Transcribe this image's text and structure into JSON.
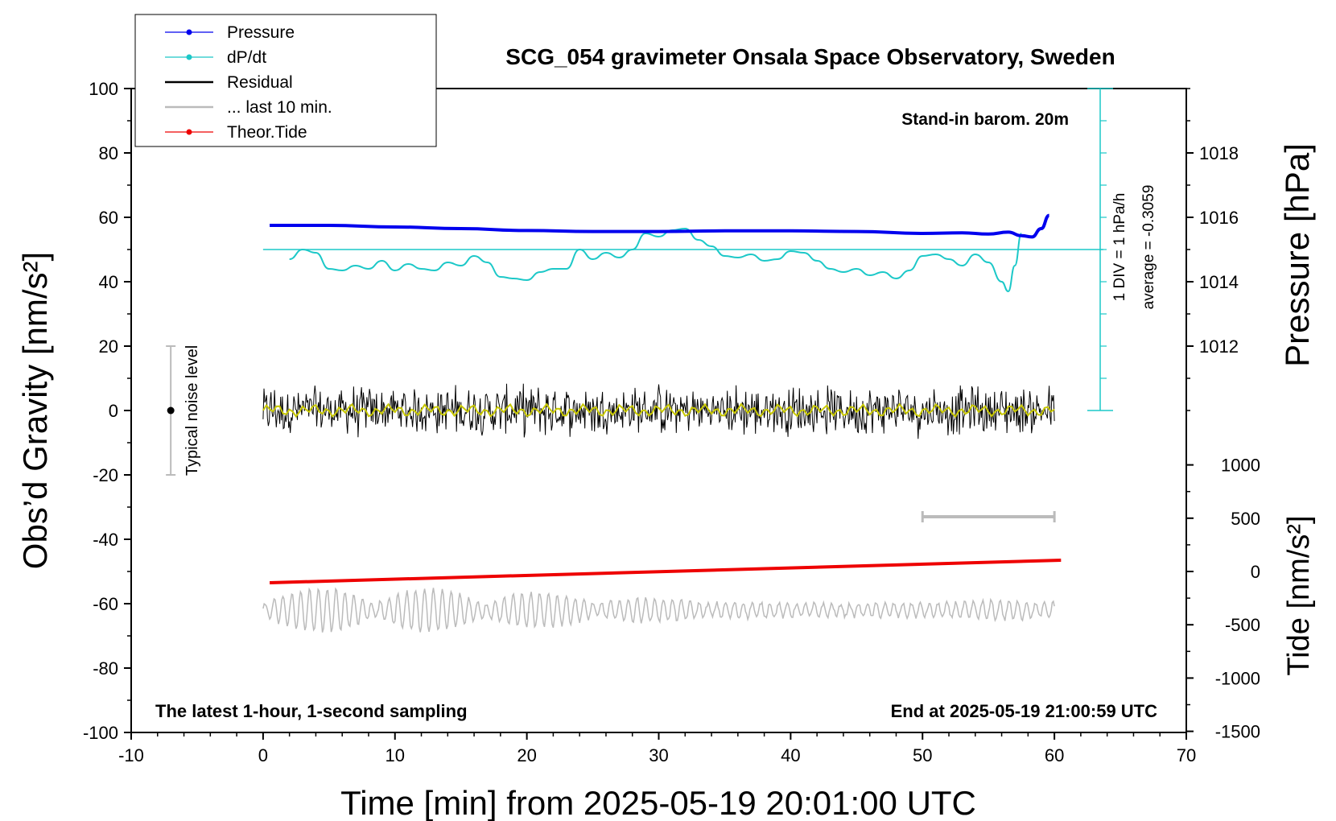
{
  "chart_data": {
    "type": "line",
    "title": "SCG_054 gravimeter Onsala Space Observatory, Sweden",
    "xlabel": "Time [min] from 2025-05-19 20:01:00 UTC",
    "ylabel_left": "Obs’d Gravity [nm/s²]",
    "ylabel_right_pressure": "Pressure [hPa]",
    "ylabel_right_tide": "Tide [nm/s²]",
    "xlim": [
      -10,
      70
    ],
    "ylim_left": [
      -100,
      100
    ],
    "x_ticks": [
      "-10",
      "0",
      "10",
      "20",
      "30",
      "40",
      "50",
      "60",
      "70"
    ],
    "y_ticks_left": [
      "100",
      "80",
      "60",
      "40",
      "20",
      "0",
      "-20",
      "-40",
      "-60",
      "-80",
      "-100"
    ],
    "pressure_ticks": [
      "1018",
      "1016",
      "1014",
      "1012"
    ],
    "tide_ticks": [
      "1000",
      "500",
      "0",
      "-500",
      "-1000",
      "-1500"
    ],
    "annotations": {
      "stand_in": "Stand-in barom. 20m",
      "div": "1 DIV = 1 hPa/h",
      "average": "average = -0.3059",
      "noise": "Typical noise level",
      "latest": "The latest 1-hour, 1-second sampling",
      "end": "End at 2025-05-19 21:00:59 UTC"
    },
    "legend": [
      {
        "label": "Pressure",
        "color": "#0000ee"
      },
      {
        "label": "dP/dt",
        "color": "#1cc8c8"
      },
      {
        "label": "Residual",
        "color": "#000000"
      },
      {
        "label": "... last 10 min.",
        "color": "#bbbbbb"
      },
      {
        "label": "Theor.Tide",
        "color": "#ee0000"
      }
    ],
    "series": [
      {
        "name": "Pressure",
        "color": "#0000ee",
        "x": [
          0.5,
          5,
          10,
          15,
          20,
          25,
          30,
          35,
          40,
          45,
          50,
          53,
          55,
          56.5,
          57.5,
          58.3,
          59,
          59.6
        ],
        "y": [
          57.5,
          57.5,
          57.0,
          56.5,
          55.9,
          55.6,
          55.6,
          55.8,
          55.8,
          55.6,
          55.0,
          55.2,
          54.8,
          55.4,
          54.3,
          53.9,
          56.5,
          60.6
        ]
      },
      {
        "name": "dP/dt",
        "color": "#1cc8c8",
        "x": [
          2,
          3,
          4,
          5,
          6,
          7,
          8,
          9,
          10,
          11,
          12,
          13,
          14,
          15,
          16,
          17,
          18,
          19,
          20,
          21,
          22,
          23,
          24,
          25,
          26,
          27,
          28,
          29,
          30,
          31,
          32,
          33,
          34,
          35,
          36,
          37,
          38,
          39,
          40,
          41,
          42,
          43,
          44,
          45,
          46,
          47,
          48,
          49,
          50,
          51,
          52,
          53,
          54,
          55,
          56,
          56.5,
          57,
          57.5
        ],
        "y": [
          47,
          50,
          49,
          44,
          43.5,
          45,
          44,
          46.5,
          43.5,
          45.5,
          44,
          43.5,
          46,
          45,
          48,
          46,
          41.5,
          41,
          40.5,
          43,
          44,
          44,
          50,
          47,
          49,
          47.5,
          50,
          55,
          54,
          56,
          56.5,
          53,
          51,
          48,
          47.5,
          48.5,
          46.5,
          47,
          49.5,
          49,
          46.5,
          44,
          43,
          44,
          42,
          43,
          41,
          43.5,
          48,
          48.5,
          47,
          45,
          48.5,
          46,
          40,
          37,
          45,
          55
        ]
      },
      {
        "name": "Residual",
        "color": "#000000",
        "x": [
          0,
          60
        ],
        "y": [
          0,
          0
        ],
        "noise_amplitude": 10
      },
      {
        "name": "... last 10 min.",
        "color": "#bbbbbb",
        "x": [
          50,
          60
        ],
        "y": [
          -33,
          -33
        ]
      },
      {
        "name": "Theor.Tide",
        "color": "#ee0000",
        "x": [
          0.5,
          60.5
        ],
        "y": [
          -53.5,
          -46.5
        ]
      }
    ],
    "noise_bar": {
      "x": -7,
      "y_min": -20,
      "y_max": 20,
      "center": 0
    }
  }
}
